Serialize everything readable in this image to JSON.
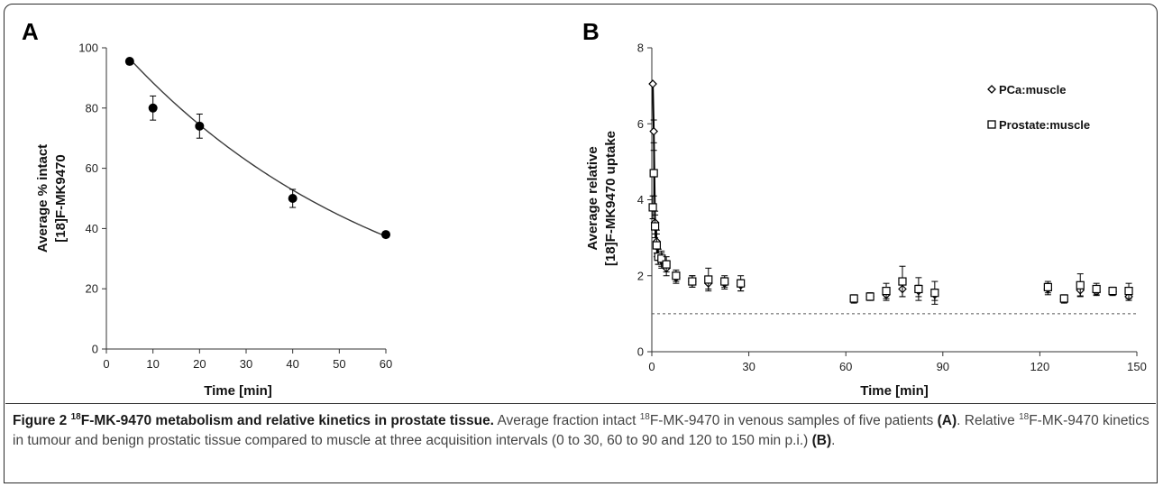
{
  "figure": {
    "caption": {
      "label": "Figure 2",
      "title_sup": "18",
      "title_rest": "F-MK-9470 metabolism and relative kinetics in prostate tissue.",
      "t1": "Average fraction intact",
      "sup1": "18",
      "t2": "F-MK-9470 in venous samples of five patients",
      "ref_a": "(A)",
      "t3": ". Relative",
      "sup2": "18",
      "t4": "F-MK-9470 kinetics in tumour and benign prostatic tissue compared to muscle at three acquisition intervals (0 to 30, 60 to 90 and 120 to 150 min p.i.)",
      "ref_b": "(B)",
      "t5": "."
    }
  },
  "chart_data": [
    {
      "panel": "A",
      "type": "scatter",
      "xlabel": "Time [min]",
      "ylabel_line1": "Average % intact",
      "ylabel_line2": "[18]F-MK9470",
      "xlim": [
        0,
        60
      ],
      "ylim": [
        0,
        100
      ],
      "xticks": [
        0,
        10,
        20,
        30,
        40,
        50,
        60
      ],
      "yticks": [
        0,
        20,
        40,
        60,
        80,
        100
      ],
      "series": [
        {
          "x": [
            5,
            10,
            20,
            40,
            60
          ],
          "y": [
            95.5,
            80,
            74,
            50,
            38
          ],
          "error": [
            0,
            4,
            4,
            3,
            0
          ],
          "marker": "filled-circle"
        }
      ],
      "fit_curve": {
        "type": "exponential",
        "a": 105,
        "k": 0.0172
      },
      "colors": {
        "marker": "#000000",
        "line": "#3a3a3a"
      }
    },
    {
      "panel": "B",
      "type": "scatter",
      "xlabel": "Time [min]",
      "ylabel_line1": "Average relative",
      "ylabel_line2": "[18]F-MK9470 uptake",
      "xlim": [
        0,
        150
      ],
      "ylim": [
        0,
        8
      ],
      "xticks": [
        0,
        30,
        60,
        90,
        120,
        150
      ],
      "yticks": [
        0,
        2,
        4,
        6,
        8
      ],
      "reference_line": 1,
      "legend_position": "top-right",
      "series": [
        {
          "name": "PCa:muscle",
          "marker": "diamond",
          "x": [
            0.3,
            0.6,
            1.0,
            1.5,
            2.0,
            3.0,
            4.5,
            7.5,
            12.5,
            17.5,
            22.5,
            27.5,
            62.5,
            67.5,
            72.5,
            77.5,
            82.5,
            87.5,
            122.5,
            127.5,
            132.5,
            137.5,
            142.5,
            147.5
          ],
          "y": [
            7.05,
            5.8,
            3.4,
            2.9,
            2.5,
            2.4,
            2.2,
            1.95,
            1.85,
            1.8,
            1.8,
            1.75,
            1.38,
            1.45,
            1.5,
            1.65,
            1.6,
            1.5,
            1.65,
            1.38,
            1.62,
            1.58,
            1.58,
            1.45
          ],
          "error": [
            0,
            0.3,
            0.3,
            0.3,
            0.2,
            0.2,
            0.2,
            0.15,
            0.15,
            0.15,
            0.15,
            0.15,
            0.1,
            0.1,
            0.15,
            0.2,
            0.15,
            0.15,
            0.15,
            0.1,
            0.15,
            0.1,
            0.1,
            0.1
          ]
        },
        {
          "name": "Prostate:muscle",
          "marker": "square",
          "x": [
            0.3,
            0.6,
            1.0,
            1.5,
            2.0,
            3.0,
            4.5,
            7.5,
            12.5,
            17.5,
            22.5,
            27.5,
            62.5,
            67.5,
            72.5,
            77.5,
            82.5,
            87.5,
            122.5,
            127.5,
            132.5,
            137.5,
            142.5,
            147.5
          ],
          "y": [
            3.8,
            4.7,
            3.3,
            2.8,
            2.5,
            2.45,
            2.3,
            2.0,
            1.85,
            1.9,
            1.85,
            1.8,
            1.4,
            1.45,
            1.6,
            1.85,
            1.65,
            1.55,
            1.7,
            1.4,
            1.75,
            1.65,
            1.6,
            1.6
          ],
          "error": [
            0.3,
            0.6,
            0.3,
            0.3,
            0.2,
            0.2,
            0.2,
            0.15,
            0.15,
            0.3,
            0.15,
            0.2,
            0.1,
            0.1,
            0.2,
            0.4,
            0.3,
            0.3,
            0.15,
            0.1,
            0.3,
            0.15,
            0.1,
            0.2
          ]
        }
      ],
      "colors": {
        "marker": "#000000",
        "reference": "#555555"
      }
    }
  ]
}
